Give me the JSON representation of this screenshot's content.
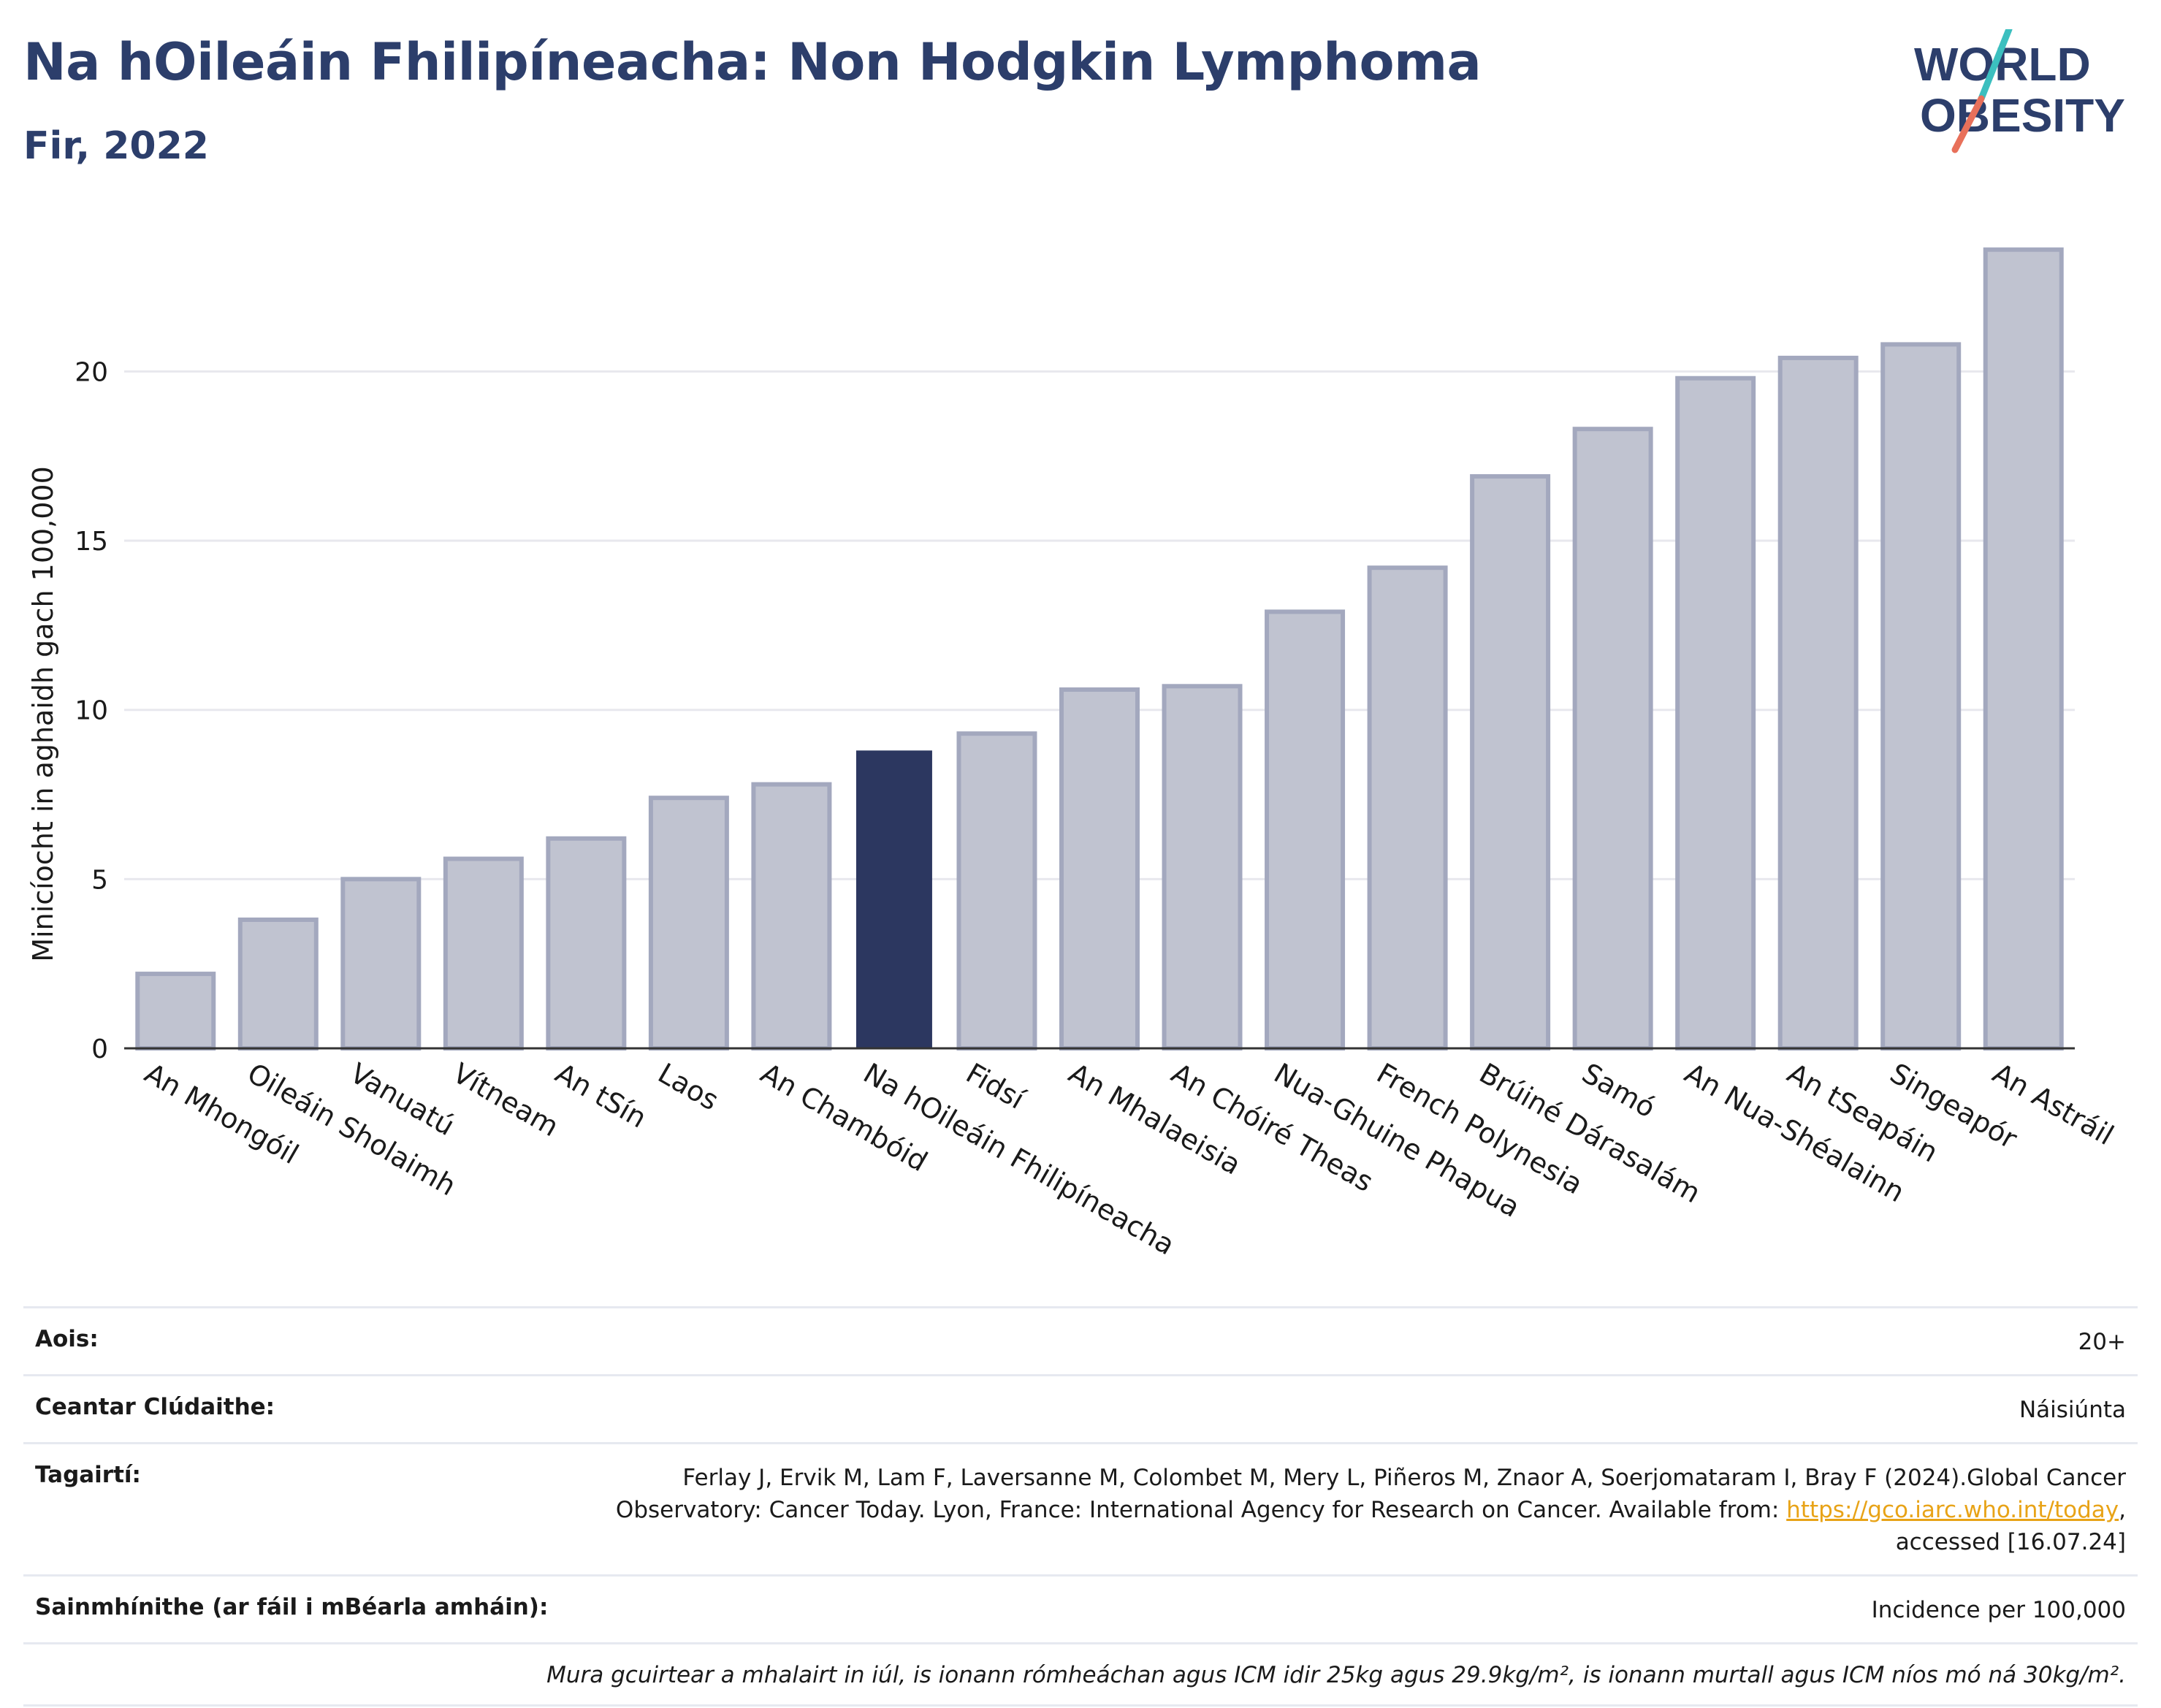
{
  "header": {
    "title": "Na hOileáin Fhilipíneacha: Non Hodgkin Lymphoma",
    "subtitle": "Fir, 2022"
  },
  "logo": {
    "line1": "WORLD",
    "line2": "OBESITY",
    "colors": {
      "text": "#2c3e6b",
      "slash_top": "#3cbfbf",
      "slash_bottom": "#e8705a"
    }
  },
  "chart_data": {
    "type": "bar",
    "ylabel": "Minicíocht in aghaidh gach 100,000",
    "xlabel": "",
    "ylim": [
      0,
      24.5
    ],
    "yticks": [
      0,
      5,
      10,
      15,
      20
    ],
    "grid": true,
    "categories": [
      "An Mhongóil",
      "Oileáin Sholaimh",
      "Vanuatú",
      "Vítneam",
      "An tSín",
      "Laos",
      "An Chambóid",
      "Na hOileáin Fhilipíneacha",
      "Fidsí",
      "An Mhalaeisia",
      "An Chóiré Theas",
      "Nua-Ghuine Phapua",
      "French Polynesia",
      "Brúiné Dárasalám",
      "Samó",
      "An Nua-Shéalainn",
      "An tSeapáin",
      "Singeapór",
      "An Astráil"
    ],
    "values": [
      2.2,
      3.8,
      5.0,
      5.6,
      6.2,
      7.4,
      7.8,
      8.8,
      9.3,
      10.6,
      10.7,
      12.9,
      14.2,
      16.9,
      18.3,
      19.8,
      20.4,
      20.8,
      23.6
    ],
    "highlight": "Na hOileáin Fhilipíneacha",
    "colors": {
      "bar": "#c0c3d0",
      "bar_border": "#a3a8be",
      "highlight": "#2c3760",
      "grid": "#e8e8ee",
      "axis": "#333333"
    }
  },
  "info": {
    "age_label": "Aois:",
    "age_value": "20+",
    "coverage_label": "Ceantar Clúdaithe:",
    "coverage_value": "Náisiúnta",
    "references_label": "Tagairtí:",
    "references_line1": "Ferlay J, Ervik M, Lam F, Laversanne M, Colombet M, Mery L, Piñeros M, Znaor A, Soerjomataram I, Bray F (2024).Global Cancer",
    "references_line2": "Observatory: Cancer Today. Lyon, France: International Agency for Research on Cancer. Available from:",
    "references_link": "https://gco.iarc.who.int/today",
    "references_line3": "accessed [16.07.24]",
    "definitions_label": "Sainmhínithe (ar fáil i mBéarla amháin):",
    "definitions_value": "Incidence per 100,000",
    "note": "Mura gcuirtear a mhalairt in iúl, is ionann rómheáchan agus ICM idir 25kg agus 29.9kg/m², is ionann murtall agus ICM níos mó ná 30kg/m²."
  }
}
